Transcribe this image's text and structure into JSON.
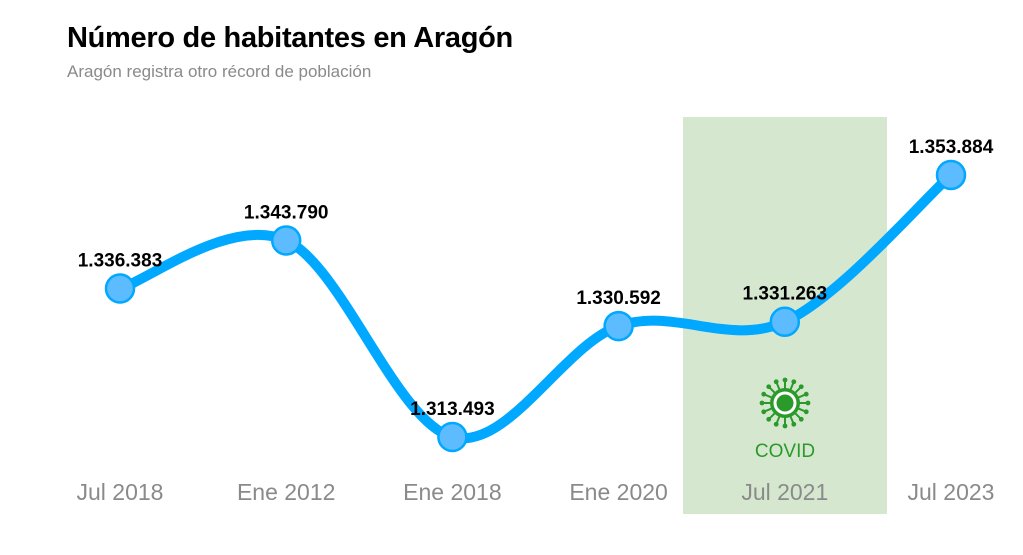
{
  "title": "Número de habitantes en Aragón",
  "subtitle": "Aragón registra otro récord de población",
  "chart_data": {
    "type": "line",
    "categories": [
      "Jul 2018",
      "Ene 2012",
      "Ene 2018",
      "Ene 2020",
      "Jul 2021",
      "Jul 2023"
    ],
    "values": [
      1336383,
      1343790,
      1313493,
      1330592,
      1331263,
      1353884
    ],
    "data_labels": [
      "1.336.383",
      "1.343.790",
      "1.313.493",
      "1.330.592",
      "1.331.263",
      "1.353.884"
    ],
    "grid": false,
    "line_color": "#00a8ff",
    "marker_color": "#5cbcff",
    "annotation": {
      "label": "COVID",
      "icon": "virus-icon",
      "highlight_category": "Jul 2021",
      "color": "#2a9a2a",
      "band_color": "#d5e8cf"
    }
  }
}
